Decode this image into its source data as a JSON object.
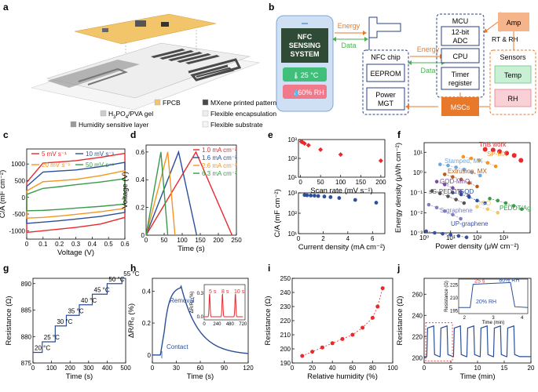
{
  "panel_letters": [
    "a",
    "b",
    "c",
    "d",
    "e",
    "f",
    "g",
    "h",
    "i",
    "j"
  ],
  "panel_a": {
    "legend": [
      "FPCB",
      "MXene printed pattern",
      "H3PO4/PVA gel",
      "Flexible encapsulation",
      "Humidity sensitive layer",
      "Flexible substrate"
    ],
    "colors": {
      "fpcb": "#f2c56b",
      "mxene": "#4a4a4a",
      "gel": "#cccccc",
      "encap": "#eeeeee",
      "humid": "#9a9a9a",
      "substrate": "#f5f5f5"
    }
  },
  "panel_b": {
    "phone_title": [
      "NFC",
      "SENSING",
      "SYSTEM"
    ],
    "phone_temp": "25 °C",
    "phone_rh": "60% RH",
    "energy": "Energy",
    "data": "Data",
    "nfc_chip": "NFC chip",
    "eeprom": "EEPROM",
    "power_mgt": [
      "Power",
      "MGT"
    ],
    "mcu": "MCU",
    "adc": [
      "12-bit",
      "ADC"
    ],
    "cpu": "CPU",
    "timer": [
      "Timer",
      "register"
    ],
    "mscs": "MSCs",
    "amp": "Amp",
    "rt_rh": "RT & RH",
    "sensors": "Sensors",
    "temp": "Temp",
    "rh": "RH",
    "colors": {
      "orange": "#e8782a",
      "green": "#4caf50",
      "navy": "#2b3f86",
      "pink": "#f07a8c"
    }
  },
  "chart_data": [
    {
      "id": "c",
      "type": "line",
      "xlabel": "Voltage (V)",
      "ylabel": "C/A (mF cm⁻²)",
      "xlim": [
        0,
        0.6
      ],
      "ylim": [
        -1250,
        1450
      ],
      "xticks": [
        0.0,
        0.1,
        0.2,
        0.3,
        0.4,
        0.5,
        0.6
      ],
      "yticks": [
        -1000,
        -500,
        0,
        500,
        1000
      ],
      "series": [
        {
          "name": "5 mV s⁻¹",
          "color": "#e8292d",
          "values": {
            "up": [
              1000,
              1030,
              1060,
              1100,
              1200,
              1320
            ],
            "down": [
              -1050,
              -1000,
              -950,
              -900,
              -800,
              -600
            ]
          }
        },
        {
          "name": "10 mV s⁻¹",
          "color": "#2b4f9b",
          "values": {
            "up": [
              730,
              760,
              790,
              820,
              920,
              1050
            ],
            "down": [
              -780,
              -740,
              -700,
              -650,
              -570,
              -450
            ]
          }
        },
        {
          "name": "20 mV s⁻¹",
          "color": "#f29620",
          "values": {
            "up": [
              430,
              470,
              500,
              540,
              650,
              800
            ],
            "down": [
              -620,
              -600,
              -560,
              -510,
              -430,
              -330
            ]
          }
        },
        {
          "name": "50 mV s⁻¹",
          "color": "#3a9a4a",
          "values": {
            "up": [
              200,
              270,
              320,
              380,
              460,
              560
            ],
            "down": [
              -400,
              -390,
              -360,
              -320,
              -270,
              -200
            ]
          }
        }
      ]
    },
    {
      "id": "d",
      "type": "line",
      "xlabel": "Time (s)",
      "ylabel": "Voltage (V)",
      "xlim": [
        0,
        250
      ],
      "ylim": [
        0,
        0.65
      ],
      "xticks": [
        0,
        50,
        100,
        150,
        200,
        250
      ],
      "yticks": [
        0.0,
        0.2,
        0.4,
        0.6
      ],
      "series": [
        {
          "name": "1.0 mA cm⁻²",
          "color": "#e8292d",
          "x": [
            0,
            138,
            238
          ],
          "y": [
            0,
            0.6,
            0
          ]
        },
        {
          "name": "1.6 mA cm⁻²",
          "color": "#2b4f9b",
          "x": [
            0,
            90,
            140
          ],
          "y": [
            0,
            0.6,
            0
          ]
        },
        {
          "name": "2.6 mA cm⁻²",
          "color": "#f29620",
          "x": [
            0,
            60,
            80
          ],
          "y": [
            0,
            0.6,
            0
          ]
        },
        {
          "name": "6.3 mA cm⁻²",
          "color": "#3a9a4a",
          "x": [
            0,
            41,
            60
          ],
          "y": [
            0,
            0.6,
            0
          ]
        }
      ]
    },
    {
      "id": "e_top",
      "type": "scatter",
      "xlabel": "Scan rate (mV s⁻¹)",
      "ylabel": "",
      "xlim": [
        -5,
        210
      ],
      "ylim": [
        10,
        1000
      ],
      "yscale": "log",
      "xticks": [
        0,
        50,
        100,
        150,
        200
      ],
      "yticks": [
        10,
        100,
        1000
      ],
      "yticklabels": [
        "10¹",
        "10²",
        "10³"
      ],
      "color": "#e8292d",
      "x": [
        2,
        5,
        10,
        20,
        50,
        100,
        200
      ],
      "y": [
        780,
        720,
        620,
        500,
        290,
        160,
        75
      ]
    },
    {
      "id": "e_bot",
      "type": "scatter",
      "xlabel": "Current density (mA cm⁻²)",
      "ylabel": "C/A (mF cm⁻²)",
      "xlim": [
        0,
        7
      ],
      "ylim": [
        10,
        1000
      ],
      "yscale": "log",
      "xticks": [
        0,
        2,
        4,
        6
      ],
      "yticks": [
        10,
        100,
        1000
      ],
      "yticklabels": [
        "10¹",
        "10²",
        "10³"
      ],
      "color": "#2b4f9b",
      "x": [
        0.5,
        0.7,
        1.0,
        1.3,
        1.6,
        2.1,
        2.6,
        3.3,
        4.6,
        6.3
      ],
      "y": [
        780,
        760,
        740,
        730,
        700,
        660,
        620,
        560,
        450,
        330
      ]
    },
    {
      "id": "f",
      "type": "scatter",
      "xlabel": "Power density (μW cm⁻²)",
      "ylabel": "Energy density (μWh cm⁻²)",
      "xscale": "log",
      "yscale": "log",
      "xlim": [
        1,
        10000
      ],
      "ylim": [
        0.001,
        30
      ],
      "xticks": [
        1,
        10,
        100,
        1000,
        10000
      ],
      "yticks": [
        0.001,
        0.01,
        0.1,
        1,
        10
      ],
      "xticklabels": [
        "10⁰",
        "10¹",
        "10²",
        "10³",
        ""
      ],
      "yticklabels": [
        "10⁻³",
        "10⁻²",
        "10⁻¹",
        "10⁰",
        "10¹"
      ],
      "series": [
        {
          "name": "This work",
          "color": "#e8292d",
          "x": [
            200,
            400,
            700,
            1300,
            2500,
            4500
          ],
          "y": [
            14,
            13,
            11,
            9,
            7,
            4
          ]
        },
        {
          "name": "SP-MX",
          "color": "#f29620",
          "x": [
            30,
            60,
            120,
            250,
            500
          ],
          "y": [
            6,
            5,
            4,
            3,
            2
          ]
        },
        {
          "name": "Stamped, MX",
          "color": "#6fa8dc",
          "x": [
            4,
            8,
            16,
            32,
            64,
            130
          ],
          "y": [
            2.5,
            2.2,
            1.8,
            1.4,
            1,
            0.7
          ]
        },
        {
          "name": "Extrusion, MX",
          "color": "#b75a1d",
          "x": [
            6,
            12,
            25,
            50,
            100
          ],
          "y": [
            0.8,
            0.6,
            0.45,
            0.3,
            0.2
          ]
        },
        {
          "name": "GQD-MnO₂",
          "color": "#7d4aa3",
          "x": [
            3,
            6,
            12,
            24,
            48
          ],
          "y": [
            0.35,
            0.25,
            0.17,
            0.11,
            0.07
          ]
        },
        {
          "name": "GQD",
          "color": "#2b4f9b",
          "x": [
            12,
            25,
            50,
            100,
            200
          ],
          "y": [
            0.1,
            0.08,
            0.06,
            0.04,
            0.03
          ]
        },
        {
          "name": "sG-PEDOT",
          "color": "#555555",
          "x": [
            2,
            4,
            8,
            16,
            32
          ],
          "y": [
            0.12,
            0.09,
            0.065,
            0.045,
            0.03
          ]
        },
        {
          "name": "rGO",
          "color": "#f2c56b",
          "x": [
            100,
            250,
            600
          ],
          "y": [
            0.02,
            0.015,
            0.01
          ]
        },
        {
          "name": "PEDOT/Ag",
          "color": "#3a9a4a",
          "x": [
            300,
            600,
            1200,
            2400,
            4800
          ],
          "y": [
            0.05,
            0.04,
            0.03,
            0.022,
            0.015
          ]
        },
        {
          "name": "S-graphene",
          "color": "#7f7fbf",
          "x": [
            1.5,
            3,
            6,
            12,
            24
          ],
          "y": [
            0.025,
            0.018,
            0.012,
            0.008,
            0.005
          ]
        },
        {
          "name": "UP-graphene",
          "color": "#3b4fa0",
          "x": [
            1.2,
            2.5,
            5,
            10,
            20,
            40
          ],
          "y": [
            0.0012,
            0.001,
            0.0009,
            0.0008,
            0.0007,
            0.0006
          ]
        }
      ]
    },
    {
      "id": "g",
      "type": "line",
      "xlabel": "Time (s)",
      "ylabel": "Resistance (Ω)",
      "xlim": [
        0,
        500
      ],
      "ylim": [
        875,
        891
      ],
      "xticks": [
        0,
        100,
        200,
        300,
        400,
        500
      ],
      "yticks": [
        875,
        880,
        885,
        890
      ],
      "color": "#2b4f9b",
      "steps": [
        {
          "t0": 0,
          "t1": 50,
          "r": 877,
          "label": "20 °C"
        },
        {
          "t0": 50,
          "t1": 120,
          "r": 879,
          "label": "25 °C"
        },
        {
          "t0": 120,
          "t1": 180,
          "r": 882,
          "label": "30 °C"
        },
        {
          "t0": 180,
          "t1": 250,
          "r": 884,
          "label": "35 °C"
        },
        {
          "t0": 250,
          "t1": 320,
          "r": 886,
          "label": "40 °C"
        },
        {
          "t0": 320,
          "t1": 400,
          "r": 888,
          "label": "45 °C"
        },
        {
          "t0": 400,
          "t1": 480,
          "r": 890,
          "label": "50 °C"
        },
        {
          "t0": 480,
          "t1": 500,
          "r": 891,
          "label": "55 °C"
        }
      ]
    },
    {
      "id": "h",
      "type": "line",
      "xlabel": "Time (s)",
      "ylabel": "ΔR/R₀ (%)",
      "xlim": [
        0,
        120
      ],
      "ylim": [
        -0.05,
        0.48
      ],
      "xticks": [
        0,
        30,
        60,
        90,
        120
      ],
      "yticks": [
        0.0,
        0.2,
        0.4
      ],
      "color": "#2b4f9b",
      "annotations": [
        "Removal",
        "Contact"
      ],
      "inset": {
        "ylabel": "ΔR/R₀ (%)",
        "xticks": [
          0,
          240,
          480,
          720
        ],
        "yticks": [
          0.0,
          0.3
        ],
        "labels": [
          "5 s",
          "8 s",
          "10 s"
        ],
        "color": "#e8292d"
      }
    },
    {
      "id": "i",
      "type": "scatter",
      "xlabel": "Relative humidity (%)",
      "ylabel": "Resistance (Ω)",
      "xlim": [
        0,
        100
      ],
      "ylim": [
        190,
        250
      ],
      "xticks": [
        0,
        20,
        40,
        60,
        80,
        100
      ],
      "yticks": [
        190,
        200,
        210,
        220,
        230,
        240,
        250
      ],
      "color": "#e8292d",
      "x": [
        10,
        20,
        30,
        40,
        50,
        60,
        70,
        80,
        85,
        90
      ],
      "y": [
        195,
        198,
        201,
        204,
        207,
        210,
        215,
        222,
        230,
        243
      ]
    },
    {
      "id": "j",
      "type": "line",
      "xlabel": "Time (min)",
      "ylabel": "Resistance (Ω)",
      "xlim": [
        0,
        20
      ],
      "ylim": [
        195,
        275
      ],
      "xticks": [
        0,
        5,
        10,
        15,
        20
      ],
      "yticks": [
        200,
        220,
        240,
        260
      ],
      "color": "#2b4f9b",
      "pulses_start": [
        0.5,
        3.0,
        5.5,
        8.0,
        10.5,
        13.0,
        15.5
      ],
      "inset": {
        "ylabel": "Resistance (Ω)",
        "xlabel": "Time (min)",
        "xticks": [
          2,
          3,
          4
        ],
        "yticks": [
          195,
          210,
          225
        ],
        "labels": [
          "25 s",
          "80% RH",
          "20% RH"
        ]
      }
    }
  ]
}
